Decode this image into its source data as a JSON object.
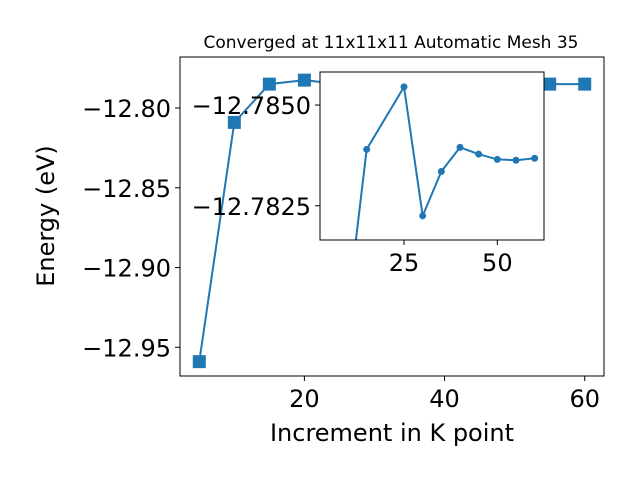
{
  "chart_data": [
    {
      "type": "line",
      "title": "Converged at 11x11x11 Automatic Mesh 35",
      "xlabel": "Increment in K point",
      "ylabel": "Energy (eV)",
      "xlim": [
        2.25,
        62.75
      ],
      "ylim": [
        -12.968,
        -12.768
      ],
      "xticks": [
        20,
        40,
        60
      ],
      "yticks": [
        -12.95,
        -12.9,
        -12.85,
        -12.8
      ],
      "ytick_labels": [
        "−12.95",
        "−12.90",
        "−12.85",
        "−12.80"
      ],
      "marker": "square",
      "color": "#1f77b4",
      "series": [
        {
          "x": [
            5,
            10,
            15,
            20,
            25,
            30,
            35,
            40,
            45,
            50,
            55,
            60
          ],
          "y": [
            -12.959,
            -12.809,
            -12.785,
            -12.7825,
            -12.785,
            -12.785,
            -12.785,
            -12.785,
            -12.785,
            -12.785,
            -12.785,
            -12.785
          ]
        }
      ]
    },
    {
      "type": "line",
      "title": "",
      "xlabel": "",
      "ylabel": "",
      "xlim": [
        2.5,
        62.5
      ],
      "ylim": [
        -12.78165,
        -12.78582
      ],
      "xticks": [
        25,
        50
      ],
      "yticks": [
        -12.785,
        -12.7825
      ],
      "ytick_labels": [
        "−12.7850",
        "−12.7825"
      ],
      "marker": "circle",
      "color": "#1f77b4",
      "series": [
        {
          "x": [
            10,
            15,
            25,
            30,
            35,
            40,
            45,
            50,
            55,
            60
          ],
          "y": [
            -12.78,
            -12.7839,
            -12.78545,
            -12.78225,
            -12.78335,
            -12.78395,
            -12.78378,
            -12.78365,
            -12.78363,
            -12.78368
          ]
        }
      ]
    }
  ]
}
